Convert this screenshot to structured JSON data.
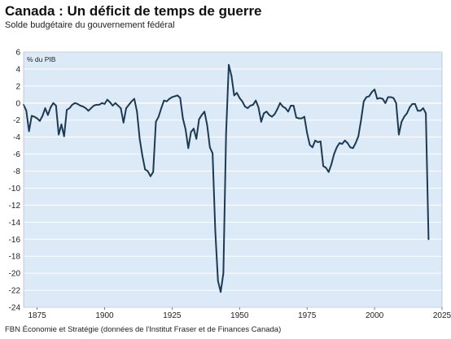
{
  "title": "Canada : Un déficit de temps de guerre",
  "subtitle": "Solde budgétaire du gouvernement fédéral",
  "source": "FBN Économie et Stratégie (données de l'Institut Fraser et de Finances Canada)",
  "colors": {
    "plot_background": "#dce9f7",
    "line": "#1c3a52",
    "gridline": "#ffffff"
  },
  "chart_data": {
    "type": "line",
    "ylabel": "% du PIB",
    "xlim": [
      1870,
      2025
    ],
    "ylim": [
      -24,
      6
    ],
    "x_ticks": [
      1875,
      1900,
      1925,
      1950,
      1975,
      2000,
      2025
    ],
    "y_ticks": [
      6,
      4,
      2,
      0,
      -2,
      -4,
      -6,
      -8,
      -10,
      -12,
      -14,
      -16,
      -18,
      -20,
      -22,
      -24
    ],
    "grid": true,
    "x": [
      1870,
      1871,
      1872,
      1873,
      1874,
      1875,
      1876,
      1877,
      1878,
      1879,
      1880,
      1881,
      1882,
      1883,
      1884,
      1885,
      1886,
      1887,
      1888,
      1889,
      1890,
      1891,
      1892,
      1893,
      1894,
      1895,
      1896,
      1897,
      1898,
      1899,
      1900,
      1901,
      1902,
      1903,
      1904,
      1905,
      1906,
      1907,
      1908,
      1909,
      1910,
      1911,
      1912,
      1913,
      1914,
      1915,
      1916,
      1917,
      1918,
      1919,
      1920,
      1921,
      1922,
      1923,
      1924,
      1925,
      1926,
      1927,
      1928,
      1929,
      1930,
      1931,
      1932,
      1933,
      1934,
      1935,
      1936,
      1937,
      1938,
      1939,
      1940,
      1941,
      1942,
      1943,
      1944,
      1945,
      1946,
      1947,
      1948,
      1949,
      1950,
      1951,
      1952,
      1953,
      1954,
      1955,
      1956,
      1957,
      1958,
      1959,
      1960,
      1961,
      1962,
      1963,
      1964,
      1965,
      1966,
      1967,
      1968,
      1969,
      1970,
      1971,
      1972,
      1973,
      1974,
      1975,
      1976,
      1977,
      1978,
      1979,
      1980,
      1981,
      1982,
      1983,
      1984,
      1985,
      1986,
      1987,
      1988,
      1989,
      1990,
      1991,
      1992,
      1993,
      1994,
      1995,
      1996,
      1997,
      1998,
      1999,
      2000,
      2001,
      2002,
      2003,
      2004,
      2005,
      2006,
      2007,
      2008,
      2009,
      2010,
      2011,
      2012,
      2013,
      2014,
      2015,
      2016,
      2017,
      2018,
      2019,
      2020
    ],
    "series": [
      {
        "values": [
          -0.2,
          -0.9,
          -3.3,
          -1.5,
          -1.6,
          -1.8,
          -2.1,
          -1.5,
          -0.6,
          -1.4,
          -0.5,
          0.0,
          -0.3,
          -3.7,
          -2.5,
          -3.9,
          -0.8,
          -0.6,
          -0.2,
          0.0,
          -0.1,
          -0.3,
          -0.4,
          -0.6,
          -0.9,
          -0.6,
          -0.3,
          -0.2,
          -0.2,
          0.0,
          -0.1,
          0.4,
          0.1,
          -0.3,
          0.0,
          -0.3,
          -0.6,
          -2.3,
          -0.6,
          -0.2,
          0.2,
          0.5,
          -1.0,
          -4.2,
          -6.2,
          -7.8,
          -8.0,
          -8.6,
          -8.1,
          -2.2,
          -1.6,
          -0.6,
          0.3,
          0.2,
          0.5,
          0.7,
          0.8,
          0.9,
          0.6,
          -1.8,
          -3.1,
          -5.3,
          -3.4,
          -3.0,
          -4.2,
          -1.9,
          -1.4,
          -1.0,
          -2.6,
          -5.2,
          -5.9,
          -15.0,
          -20.9,
          -22.2,
          -20.0,
          -3.6,
          4.5,
          3.2,
          0.9,
          1.2,
          0.6,
          0.2,
          -0.4,
          -0.6,
          -0.3,
          -0.2,
          0.3,
          -0.5,
          -2.2,
          -1.2,
          -1.0,
          -1.4,
          -1.6,
          -1.3,
          -0.7,
          0.0,
          -0.4,
          -0.6,
          -1.0,
          -0.3,
          -0.3,
          -1.7,
          -1.8,
          -1.8,
          -1.6,
          -3.5,
          -4.9,
          -5.2,
          -4.4,
          -4.6,
          -4.5,
          -7.4,
          -7.6,
          -8.1,
          -7.2,
          -6.0,
          -5.2,
          -4.7,
          -4.8,
          -4.4,
          -4.7,
          -5.2,
          -5.3,
          -4.7,
          -3.9,
          -2.0,
          0.2,
          0.7,
          0.8,
          1.3,
          1.6,
          0.5,
          0.6,
          0.5,
          0.0,
          0.7,
          0.7,
          0.6,
          0.0,
          -3.7,
          -2.2,
          -1.6,
          -1.2,
          -0.5,
          -0.1,
          -0.1,
          -0.9,
          -0.9,
          -0.6,
          -1.2,
          -16.0
        ]
      }
    ]
  }
}
